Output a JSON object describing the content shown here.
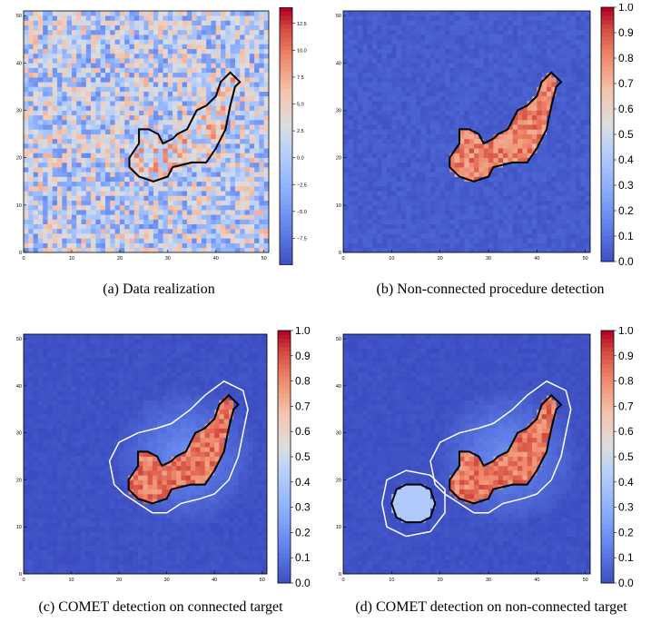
{
  "panels": [
    {
      "id": "a",
      "caption": "(a) Data realization",
      "colorbar": {
        "ticks": [
          "12.5",
          "10.0",
          "7.5",
          "5.0",
          "2.5",
          "0.0",
          "−2.5",
          "−5.0",
          "−7.5"
        ],
        "tick_values": [
          12.5,
          10,
          7.5,
          5,
          2.5,
          0,
          -2.5,
          -5,
          -7.5
        ],
        "min": -10,
        "max": 14
      },
      "x_ticks": [
        "0",
        "10",
        "20",
        "30",
        "40",
        "50"
      ],
      "y_ticks": [
        "0",
        "10",
        "20",
        "30",
        "40",
        "50"
      ],
      "contours": [
        "black"
      ]
    },
    {
      "id": "b",
      "caption": "(b) Non-connected procedure detection",
      "colorbar": {
        "ticks": [
          "1.0",
          "0.9",
          "0.8",
          "0.7",
          "0.6",
          "0.5",
          "0.4",
          "0.3",
          "0.2",
          "0.1",
          "0.0"
        ],
        "tick_values": [
          1,
          0.9,
          0.8,
          0.7,
          0.6,
          0.5,
          0.4,
          0.3,
          0.2,
          0.1,
          0
        ],
        "min": 0,
        "max": 1
      },
      "x_ticks": [
        "0",
        "10",
        "20",
        "30",
        "40",
        "50"
      ],
      "y_ticks": [
        "0",
        "10",
        "20",
        "30",
        "40",
        "50"
      ],
      "contours": [
        "black"
      ]
    },
    {
      "id": "c",
      "caption": "(c) COMET detection on connected target",
      "colorbar": {
        "ticks": [
          "1.0",
          "0.9",
          "0.8",
          "0.7",
          "0.6",
          "0.5",
          "0.4",
          "0.3",
          "0.2",
          "0.1",
          "0.0"
        ],
        "tick_values": [
          1,
          0.9,
          0.8,
          0.7,
          0.6,
          0.5,
          0.4,
          0.3,
          0.2,
          0.1,
          0
        ],
        "min": 0,
        "max": 1
      },
      "x_ticks": [
        "0",
        "10",
        "20",
        "30",
        "40",
        "50"
      ],
      "y_ticks": [
        "0",
        "10",
        "20",
        "30",
        "40",
        "50"
      ],
      "contours": [
        "black",
        "white"
      ]
    },
    {
      "id": "d",
      "caption": "(d) COMET detection on non-connected target",
      "colorbar": {
        "ticks": [
          "1.0",
          "0.9",
          "0.8",
          "0.7",
          "0.6",
          "0.5",
          "0.4",
          "0.3",
          "0.2",
          "0.1",
          "0.0"
        ],
        "tick_values": [
          1,
          0.9,
          0.8,
          0.7,
          0.6,
          0.5,
          0.4,
          0.3,
          0.2,
          0.1,
          0
        ],
        "min": 0,
        "max": 1
      },
      "x_ticks": [
        "0",
        "10",
        "20",
        "30",
        "40",
        "50"
      ],
      "y_ticks": [
        "0",
        "10",
        "20",
        "30",
        "40",
        "50"
      ],
      "contours": [
        "black",
        "white"
      ]
    }
  ],
  "colormap": "coolwarm",
  "colors": {
    "low": "#3b4cc0",
    "mid": "#dddddd",
    "high": "#b40426",
    "target_contour": "#000000",
    "detection_contour": "#ffffff"
  }
}
